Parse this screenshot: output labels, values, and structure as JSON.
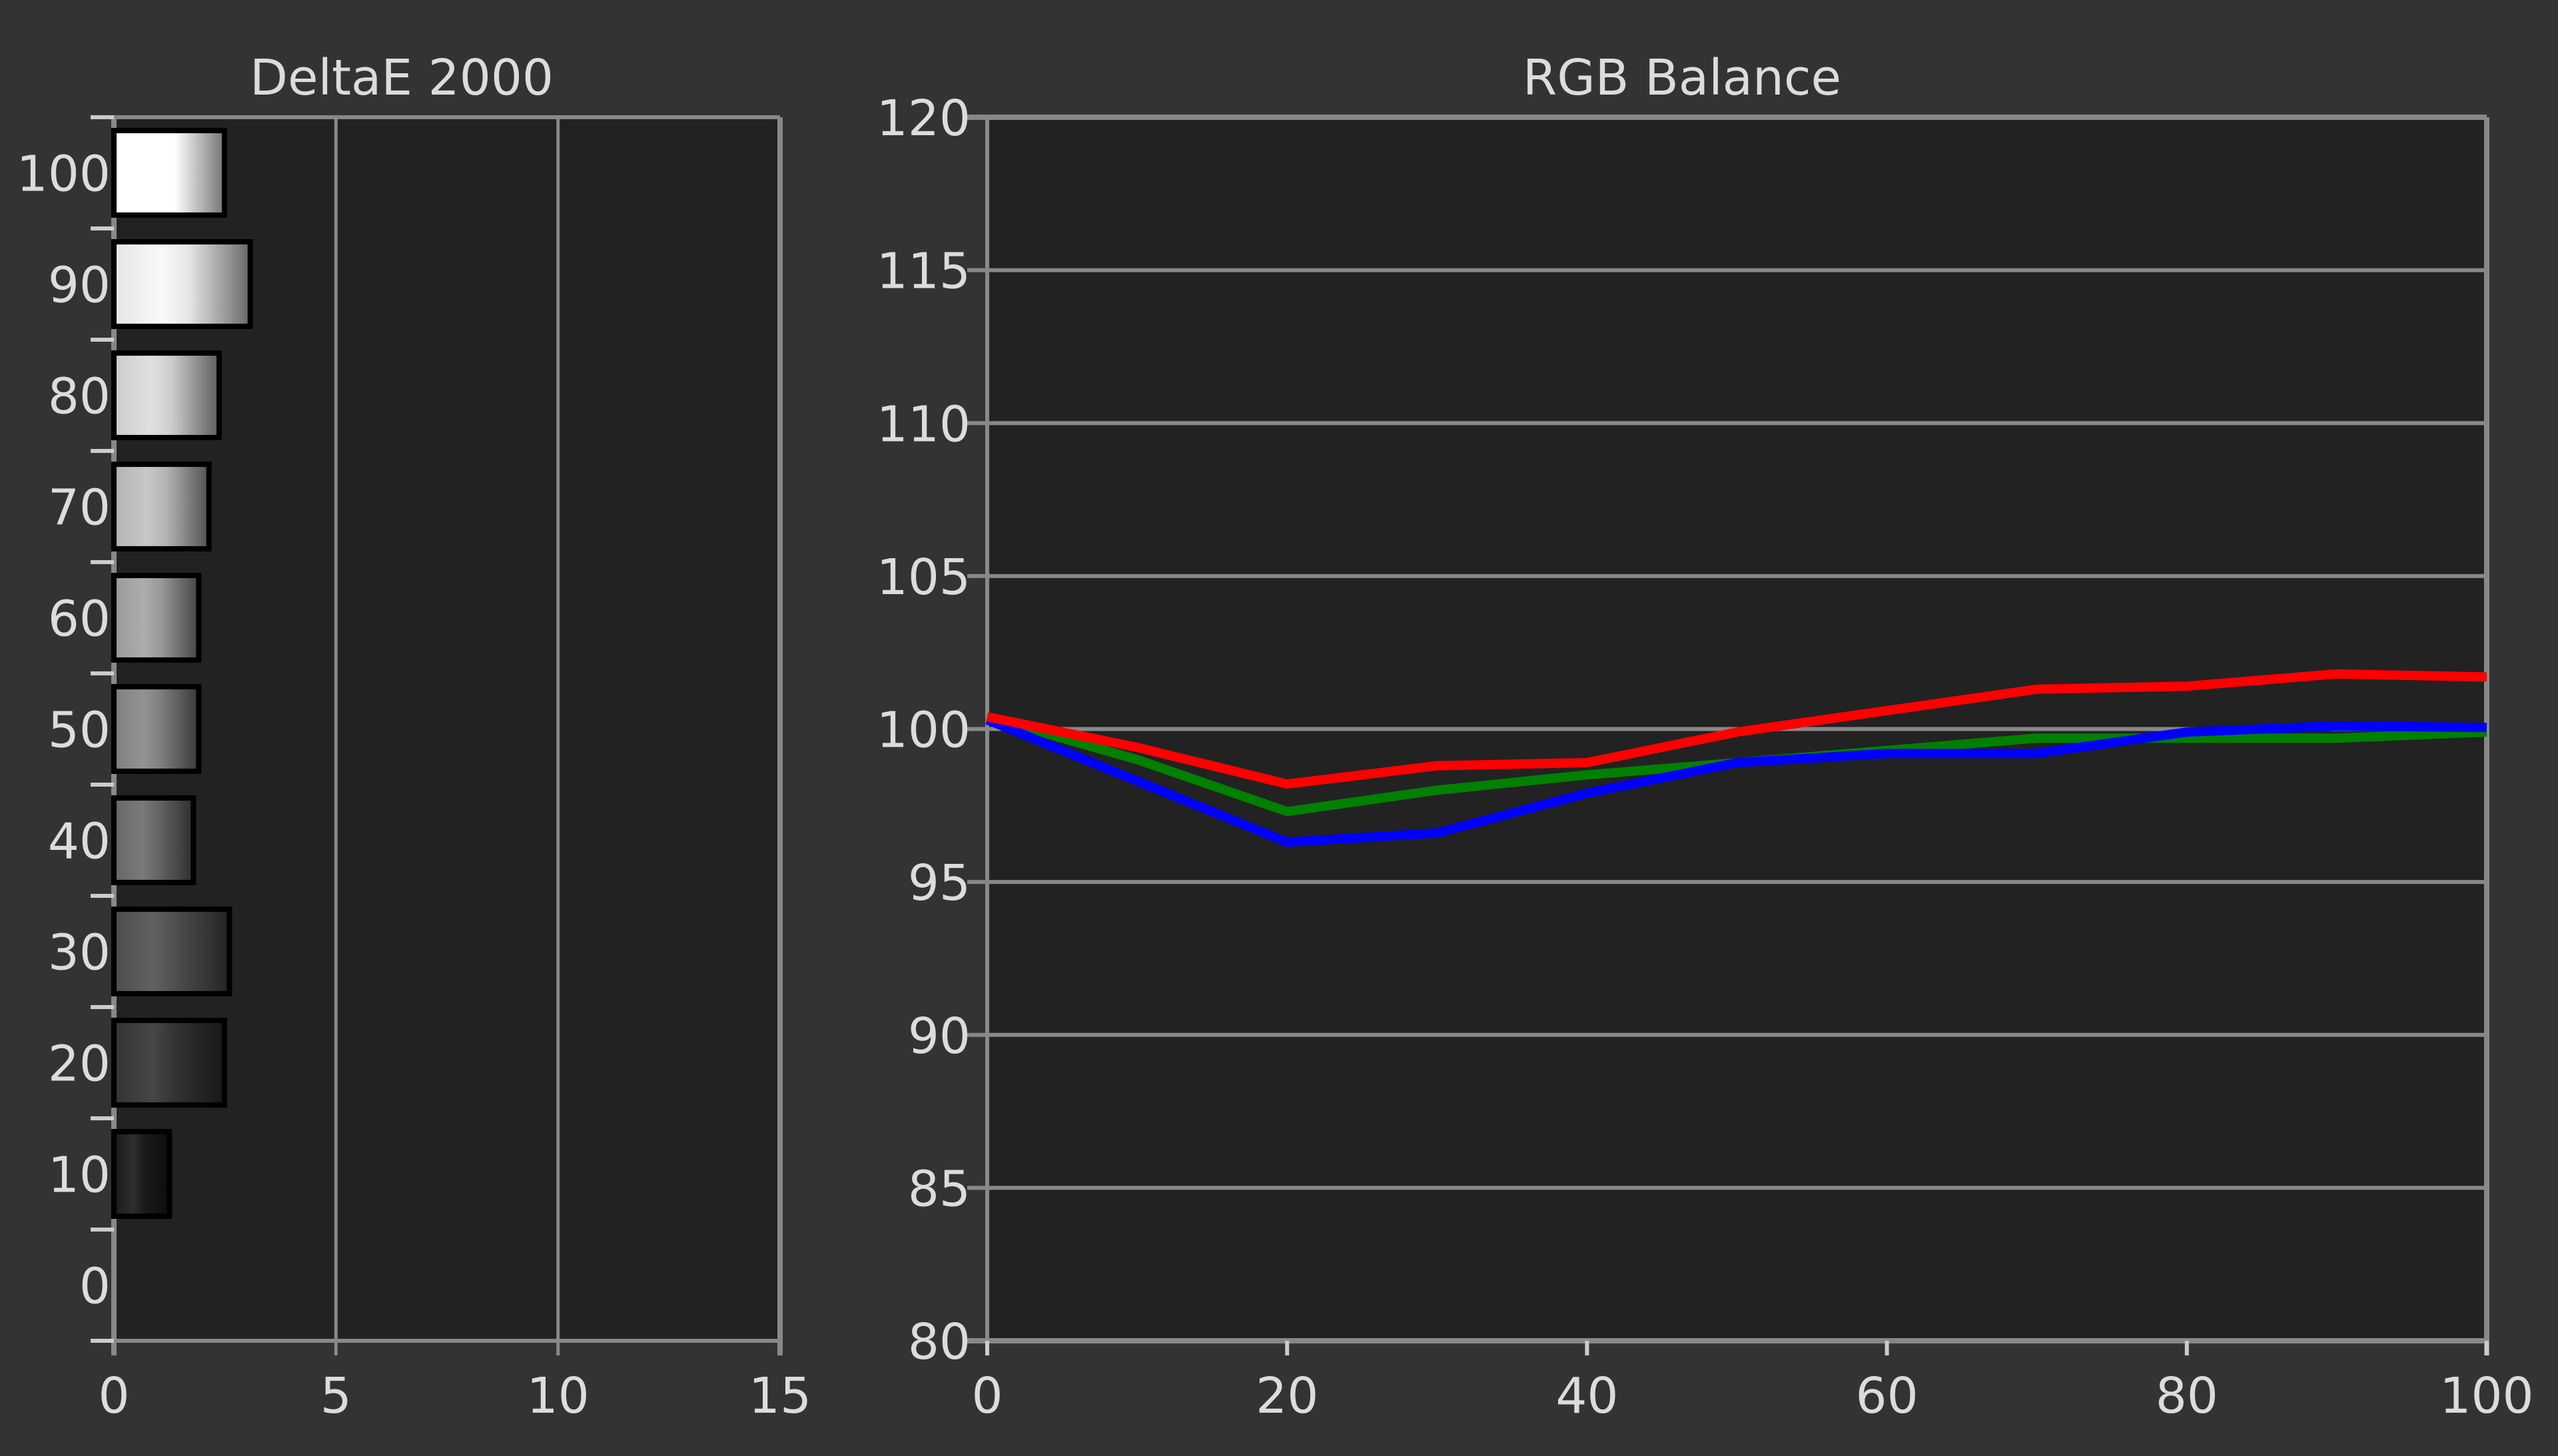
{
  "chart_data": [
    {
      "type": "bar",
      "orientation": "horizontal",
      "title": "DeltaE 2000",
      "categories": [
        "100",
        "90",
        "80",
        "70",
        "60",
        "50",
        "40",
        "30",
        "20",
        "10",
        "0"
      ],
      "category_values": [
        100,
        90,
        80,
        70,
        60,
        50,
        40,
        30,
        20,
        10,
        0
      ],
      "values": [
        2.49,
        3.07,
        2.37,
        2.14,
        1.91,
        1.91,
        1.79,
        2.6,
        2.49,
        1.25,
        null
      ],
      "bar_gray_levels": [
        100,
        90,
        80,
        70,
        60,
        50,
        40,
        30,
        20,
        10,
        0
      ],
      "xlim": [
        0,
        15
      ],
      "xticks": [
        "0",
        "5",
        "10",
        "15"
      ],
      "xtick_values": [
        0,
        5,
        10,
        15
      ],
      "ylim": [
        -5,
        105
      ],
      "grid": "vertical"
    },
    {
      "type": "line",
      "title": "RGB Balance",
      "x": [
        0,
        10,
        20,
        30,
        40,
        50,
        60,
        70,
        80,
        90,
        100
      ],
      "series": [
        {
          "name": "Red",
          "color": "#ff0000",
          "values": [
            100.4,
            99.4,
            98.2,
            98.8,
            98.9,
            99.9,
            100.6,
            101.3,
            101.4,
            101.8,
            101.7
          ]
        },
        {
          "name": "Green",
          "color": "#008000",
          "values": [
            100.4,
            99.0,
            97.3,
            98.0,
            98.5,
            98.9,
            99.3,
            99.7,
            99.7,
            99.7,
            99.9
          ]
        },
        {
          "name": "Blue",
          "color": "#0000ff",
          "values": [
            100.3,
            98.3,
            96.3,
            96.6,
            97.9,
            98.9,
            99.2,
            99.2,
            99.9,
            100.1,
            100.05
          ]
        }
      ],
      "xlim": [
        0,
        100
      ],
      "ylim": [
        80,
        120
      ],
      "xticks": [
        "0",
        "20",
        "40",
        "60",
        "80",
        "100"
      ],
      "xtick_values": [
        0,
        20,
        40,
        60,
        80,
        100
      ],
      "yticks": [
        "80",
        "85",
        "90",
        "95",
        "100",
        "105",
        "110",
        "115",
        "120"
      ],
      "ytick_values": [
        80,
        85,
        90,
        95,
        100,
        105,
        110,
        115,
        120
      ],
      "grid": "horizontal"
    }
  ],
  "colors": {
    "background": "#333333",
    "plot_bg": "#222222",
    "grid": "#888888",
    "text": "#dcdcdc"
  }
}
